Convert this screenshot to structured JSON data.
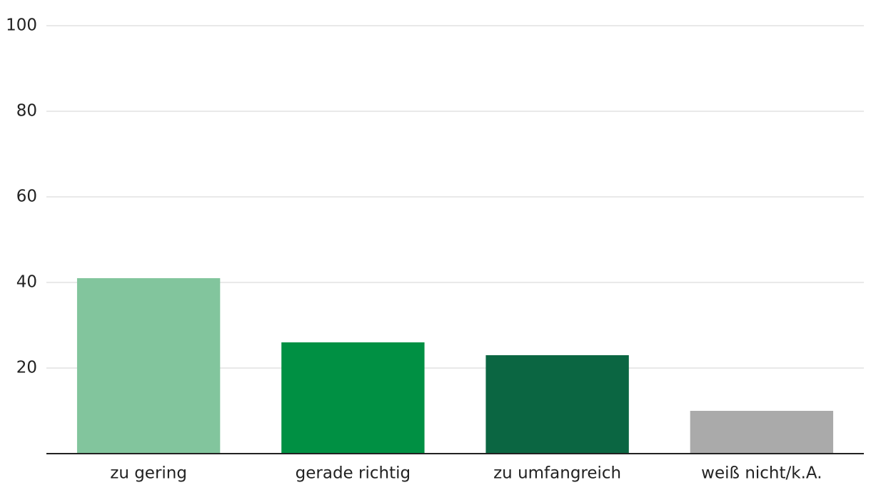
{
  "chart_data": {
    "type": "bar",
    "categories": [
      "zu gering",
      "gerade richtig",
      "zu umfangreich",
      "weiß nicht/k.A."
    ],
    "values": [
      41,
      26,
      23,
      10
    ],
    "colors": [
      "#82c59d",
      "#009043",
      "#0b6642",
      "#aaaaaa"
    ],
    "ylim": [
      0,
      100
    ],
    "yticks": [
      20,
      40,
      60,
      80,
      100
    ],
    "grid": true
  }
}
